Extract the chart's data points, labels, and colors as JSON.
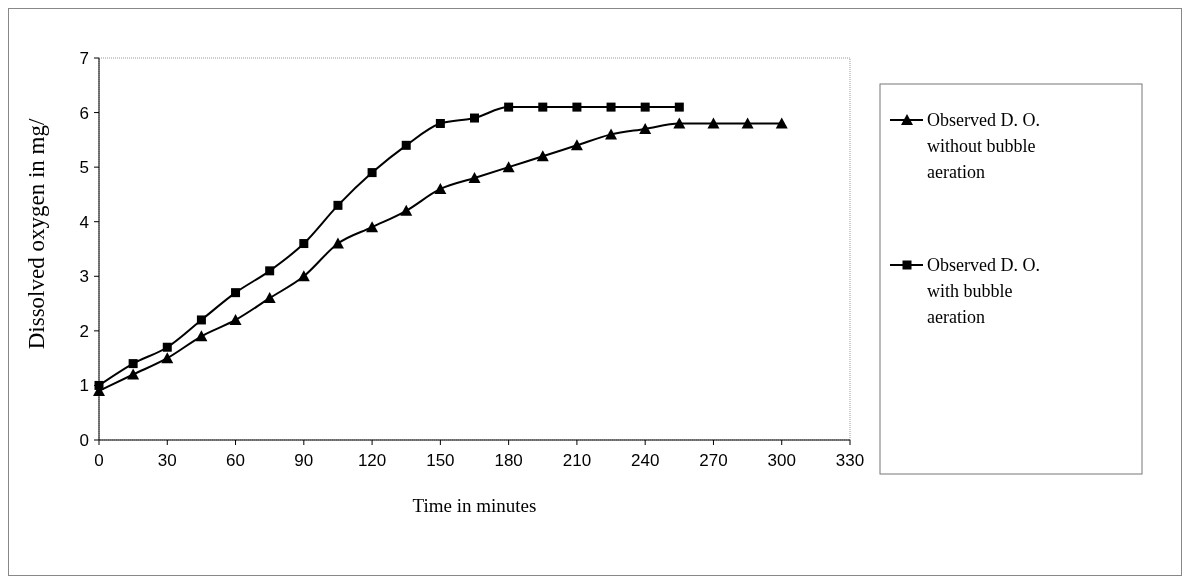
{
  "chart_data": {
    "type": "line",
    "xlabel": "Time in minutes",
    "ylabel": "Dissolved oxygen in mg/",
    "xlim": [
      0,
      330
    ],
    "xticks": [
      0,
      30,
      60,
      90,
      120,
      150,
      180,
      210,
      240,
      270,
      300,
      330
    ],
    "ylim": [
      0,
      7
    ],
    "yticks": [
      0,
      1,
      2,
      3,
      4,
      5,
      6,
      7
    ],
    "legend": "right",
    "grid": false,
    "series": [
      {
        "name": "Observed D. O. without bubble aeration",
        "color": "#000000",
        "marker": "triangle",
        "x": [
          0,
          15,
          30,
          45,
          60,
          75,
          90,
          105,
          120,
          135,
          150,
          165,
          180,
          195,
          210,
          225,
          240,
          255,
          270,
          285,
          300
        ],
        "values": [
          0.9,
          1.2,
          1.5,
          1.9,
          2.2,
          2.6,
          3.0,
          3.6,
          3.9,
          4.2,
          4.6,
          4.8,
          5.0,
          5.2,
          5.4,
          5.6,
          5.7,
          5.8,
          5.8,
          5.8,
          5.8
        ]
      },
      {
        "name": "Observed D. O. with bubble aeration",
        "color": "#000000",
        "marker": "square",
        "x": [
          0,
          15,
          30,
          45,
          60,
          75,
          90,
          105,
          120,
          135,
          150,
          165,
          180,
          195,
          210,
          225,
          240,
          255
        ],
        "values": [
          1.0,
          1.4,
          1.7,
          2.2,
          2.7,
          3.1,
          3.6,
          4.3,
          4.9,
          5.4,
          5.8,
          5.9,
          6.1,
          6.1,
          6.1,
          6.1,
          6.1,
          6.1
        ]
      }
    ]
  }
}
